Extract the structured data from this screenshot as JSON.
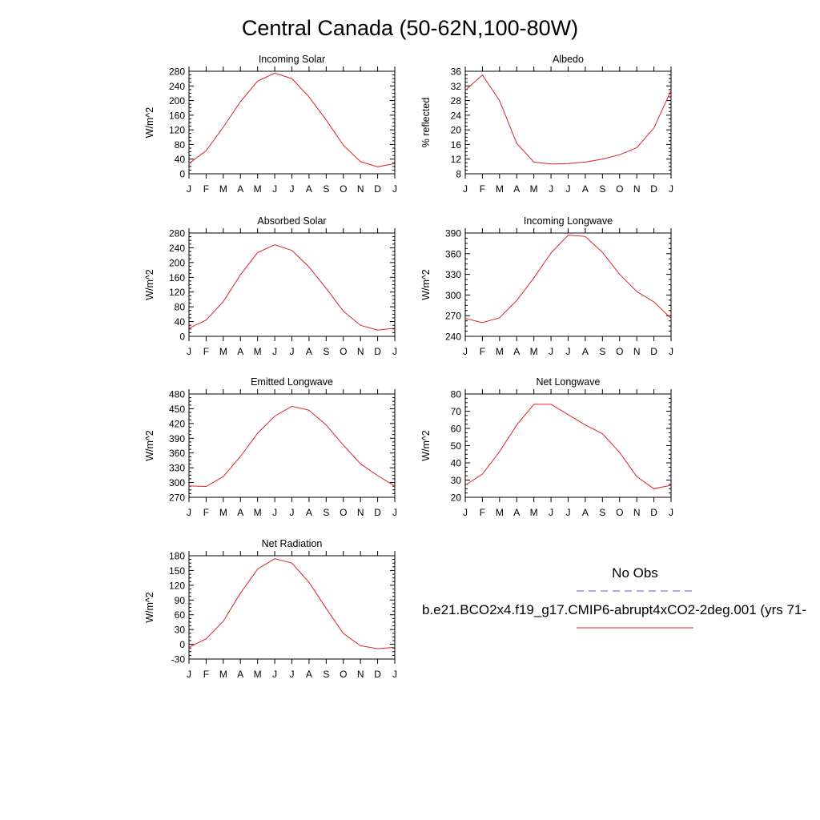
{
  "title": "Central Canada (50-62N,100-80W)",
  "legend": {
    "obs_label": "No Obs",
    "obs_color": "#5555dd",
    "model_label": "b.e21.BCO2x4.f19_g17.CMIP6-abrupt4xCO2-2deg.001 (yrs 71-",
    "model_color": "#dd2222"
  },
  "chart_data": [
    {
      "type": "line",
      "title": "Incoming Solar",
      "ylabel": "W/m^2",
      "categories": [
        "J",
        "F",
        "M",
        "A",
        "M",
        "J",
        "J",
        "A",
        "S",
        "O",
        "N",
        "D",
        "J"
      ],
      "ylim": [
        0,
        280
      ],
      "yticks": [
        0,
        40,
        80,
        120,
        160,
        200,
        240,
        280
      ],
      "series": [
        {
          "values": [
            28,
            63,
            127,
            197,
            253,
            275,
            260,
            210,
            147,
            78,
            33,
            19,
            28
          ]
        }
      ]
    },
    {
      "type": "line",
      "title": "Albedo",
      "ylabel": "% reflected",
      "categories": [
        "J",
        "F",
        "M",
        "A",
        "M",
        "J",
        "J",
        "A",
        "S",
        "O",
        "N",
        "D",
        "J"
      ],
      "ylim": [
        8,
        36
      ],
      "yticks": [
        8,
        12,
        16,
        20,
        24,
        28,
        32,
        36
      ],
      "series": [
        {
          "values": [
            30.8,
            35,
            28,
            16.3,
            11.2,
            10.7,
            10.8,
            11.2,
            12,
            13.2,
            15.1,
            20.5,
            30.8
          ]
        }
      ]
    },
    {
      "type": "line",
      "title": "Absorbed Solar",
      "ylabel": "W/m^2",
      "categories": [
        "J",
        "F",
        "M",
        "A",
        "M",
        "J",
        "J",
        "A",
        "S",
        "O",
        "N",
        "D",
        "J"
      ],
      "ylim": [
        0,
        280
      ],
      "yticks": [
        0,
        40,
        80,
        120,
        160,
        200,
        240,
        280
      ],
      "series": [
        {
          "values": [
            22,
            44,
            94,
            167,
            227,
            248,
            233,
            188,
            130,
            68,
            30,
            17,
            22
          ]
        }
      ]
    },
    {
      "type": "line",
      "title": "Incoming Longwave",
      "ylabel": "W/m^2",
      "categories": [
        "J",
        "F",
        "M",
        "A",
        "M",
        "J",
        "J",
        "A",
        "S",
        "O",
        "N",
        "D",
        "J"
      ],
      "ylim": [
        240,
        390
      ],
      "yticks": [
        240,
        270,
        300,
        330,
        360,
        390
      ],
      "series": [
        {
          "values": [
            266,
            260,
            267,
            292,
            325,
            361,
            387,
            385,
            362,
            330,
            305,
            290,
            266
          ]
        }
      ]
    },
    {
      "type": "line",
      "title": "Emitted Longwave",
      "ylabel": "W/m^2",
      "categories": [
        "J",
        "F",
        "M",
        "A",
        "M",
        "J",
        "J",
        "A",
        "S",
        "O",
        "N",
        "D",
        "J"
      ],
      "ylim": [
        270,
        480
      ],
      "yticks": [
        270,
        300,
        330,
        360,
        390,
        420,
        450,
        480
      ],
      "series": [
        {
          "values": [
            293,
            292,
            312,
            353,
            400,
            435,
            455,
            447,
            417,
            376,
            338,
            314,
            293
          ]
        }
      ]
    },
    {
      "type": "line",
      "title": "Net Longwave",
      "ylabel": "W/m^2",
      "categories": [
        "J",
        "F",
        "M",
        "A",
        "M",
        "J",
        "J",
        "A",
        "S",
        "O",
        "N",
        "D",
        "J"
      ],
      "ylim": [
        20,
        80
      ],
      "yticks": [
        20,
        30,
        40,
        50,
        60,
        70,
        80
      ],
      "series": [
        {
          "values": [
            27,
            33.5,
            46.5,
            62,
            74,
            74,
            68,
            62,
            57,
            46,
            32,
            25,
            27
          ]
        }
      ]
    },
    {
      "type": "line",
      "title": "Net Radiation",
      "ylabel": "W/m^2",
      "categories": [
        "J",
        "F",
        "M",
        "A",
        "M",
        "J",
        "J",
        "A",
        "S",
        "O",
        "N",
        "D",
        "J"
      ],
      "ylim": [
        -30,
        180
      ],
      "yticks": [
        -30,
        0,
        30,
        60,
        90,
        120,
        150,
        180
      ],
      "series": [
        {
          "values": [
            -6,
            11,
            47,
            104,
            153,
            174,
            165,
            126,
            73,
            22,
            -3,
            -9,
            -6
          ]
        }
      ]
    }
  ]
}
